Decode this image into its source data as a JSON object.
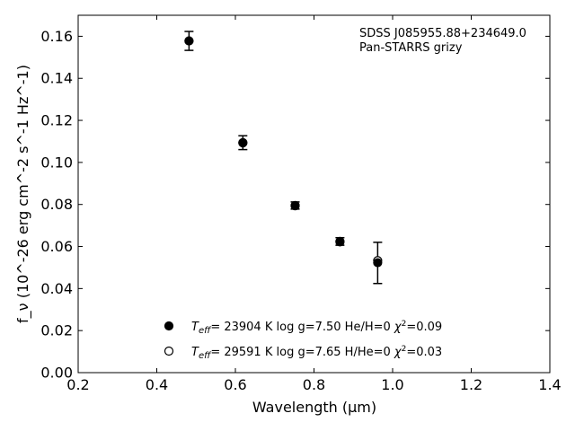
{
  "chart_data": {
    "type": "scatter",
    "xlabel": "Wavelength (μm)",
    "ylabel": "f_ν (10^-26 erg cm^-2 s^-1 Hz^-1)",
    "xlim": [
      0.2,
      1.4
    ],
    "ylim": [
      0.0,
      0.17
    ],
    "x_ticks": [
      0.2,
      0.4,
      0.6,
      0.8,
      1.0,
      1.2,
      1.4
    ],
    "y_ticks": [
      0.0,
      0.02,
      0.04,
      0.06,
      0.08,
      0.1,
      0.12,
      0.14,
      0.16
    ],
    "x_tick_labels": [
      "0.2",
      "0.4",
      "0.6",
      "0.8",
      "1.0",
      "1.2",
      "1.4"
    ],
    "y_tick_labels": [
      "0.00",
      "0.02",
      "0.04",
      "0.06",
      "0.08",
      "0.10",
      "0.12",
      "0.14",
      "0.16"
    ],
    "grid": false,
    "annotations": [
      "SDSS J085955.88+234649.0",
      "Pan-STARRS grizy"
    ],
    "observed": {
      "x": [
        0.482,
        0.619,
        0.752,
        0.866,
        0.962
      ],
      "y": [
        0.1578,
        0.1094,
        0.0795,
        0.0624,
        0.0522
      ],
      "yerr": [
        0.0045,
        0.0033,
        0.0017,
        0.0018,
        0.0098
      ]
    },
    "series": [
      {
        "marker": "filled-circle",
        "model": {
          "teff": "23904",
          "logg": "7.50",
          "comp": "He/H=0",
          "chi2": "0.09"
        },
        "x": [
          0.482,
          0.619,
          0.752,
          0.866,
          0.962
        ],
        "y": [
          0.1578,
          0.1094,
          0.0795,
          0.0624,
          0.0523
        ]
      },
      {
        "marker": "open-circle",
        "model": {
          "teff": "29591",
          "logg": "7.65",
          "comp": "H/He=0",
          "chi2": "0.03"
        },
        "x": [
          0.482,
          0.619,
          0.752,
          0.866,
          0.962
        ],
        "y": [
          0.1578,
          0.1093,
          0.0794,
          0.0622,
          0.0533
        ]
      }
    ],
    "legend_position": "lower-center"
  }
}
